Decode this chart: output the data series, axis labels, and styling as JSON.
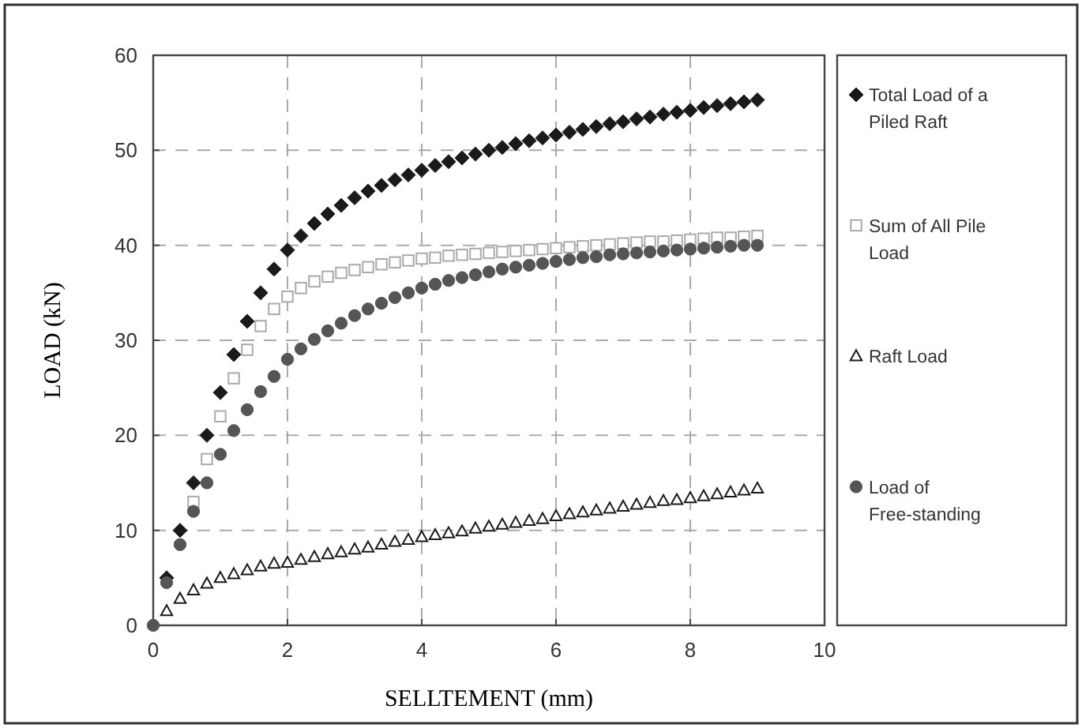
{
  "chart_data": {
    "type": "scatter",
    "xlabel": "SELLTEMENT (mm)",
    "ylabel": "LOAD (kN)",
    "xlim": [
      0,
      10
    ],
    "xticks": [
      0,
      2,
      4,
      6,
      8,
      10
    ],
    "ylim": [
      0,
      60
    ],
    "yticks": [
      0,
      10,
      20,
      30,
      40,
      50,
      60
    ],
    "grid": true,
    "legend": "right",
    "x": [
      0,
      0.2,
      0.4,
      0.6,
      0.8,
      1,
      1.2,
      1.4,
      1.6,
      1.8,
      2,
      2.2,
      2.4,
      2.6,
      2.8,
      3,
      3.2,
      3.4,
      3.6,
      3.8,
      4,
      4.2,
      4.4,
      4.6,
      4.8,
      5,
      5.2,
      5.4,
      5.6,
      5.8,
      6,
      6.2,
      6.4,
      6.6,
      6.8,
      7,
      7.2,
      7.4,
      7.6,
      7.8,
      8,
      8.2,
      8.4,
      8.6,
      8.8,
      9
    ],
    "series": [
      {
        "name": "Total Load of a Piled Raft",
        "color": "#1a1a1a",
        "marker": "diamond",
        "values": [
          null,
          5,
          10,
          15,
          20,
          24.5,
          28.5,
          32,
          35,
          37.5,
          39.5,
          41,
          42.3,
          43.3,
          44.2,
          45,
          45.7,
          46.3,
          46.9,
          47.4,
          47.9,
          48.4,
          48.8,
          49.2,
          49.6,
          50,
          50.3,
          50.7,
          51,
          51.3,
          51.6,
          51.9,
          52.2,
          52.5,
          52.8,
          53,
          53.3,
          53.5,
          53.8,
          54,
          54.2,
          54.5,
          54.7,
          54.9,
          55.1,
          55.3
        ]
      },
      {
        "name": "Sum of All Pile Load",
        "color": "#aaaaaa",
        "marker": "square",
        "values": [
          null,
          null,
          null,
          13,
          17.5,
          22,
          26,
          29,
          31.5,
          33.3,
          34.6,
          35.5,
          36.2,
          36.7,
          37.1,
          37.4,
          37.7,
          38,
          38.2,
          38.4,
          38.6,
          38.7,
          38.9,
          39,
          39.1,
          39.2,
          39.3,
          39.4,
          39.5,
          39.6,
          39.7,
          39.8,
          39.9,
          40,
          40.1,
          40.2,
          40.3,
          40.4,
          40.4,
          40.5,
          40.6,
          40.7,
          40.8,
          40.8,
          40.9,
          41
        ]
      },
      {
        "name": "Raft Load",
        "color": "#1a1a1a",
        "marker": "triangle",
        "values": [
          null,
          1.5,
          2.8,
          3.7,
          4.4,
          5,
          5.4,
          5.8,
          6.2,
          6.5,
          6.6,
          6.9,
          7.2,
          7.5,
          7.7,
          8,
          8.2,
          8.5,
          8.8,
          9,
          9.3,
          9.5,
          9.7,
          9.9,
          10.2,
          10.4,
          10.6,
          10.8,
          11,
          11.2,
          11.5,
          11.7,
          11.9,
          12.1,
          12.3,
          12.5,
          12.7,
          12.9,
          13.1,
          13.2,
          13.4,
          13.6,
          13.8,
          14,
          14.2,
          14.4
        ]
      },
      {
        "name": "Load of Free-standing",
        "color": "#555555",
        "marker": "circle",
        "values": [
          0,
          4.5,
          8.5,
          12,
          15,
          18,
          20.5,
          22.7,
          24.6,
          26.2,
          28,
          29.1,
          30.1,
          31,
          31.8,
          32.6,
          33.3,
          33.9,
          34.5,
          35,
          35.5,
          35.9,
          36.3,
          36.6,
          36.9,
          37.2,
          37.5,
          37.7,
          37.9,
          38.1,
          38.3,
          38.5,
          38.7,
          38.8,
          39,
          39.1,
          39.2,
          39.3,
          39.4,
          39.5,
          39.6,
          39.7,
          39.8,
          39.9,
          40,
          40
        ]
      }
    ]
  }
}
